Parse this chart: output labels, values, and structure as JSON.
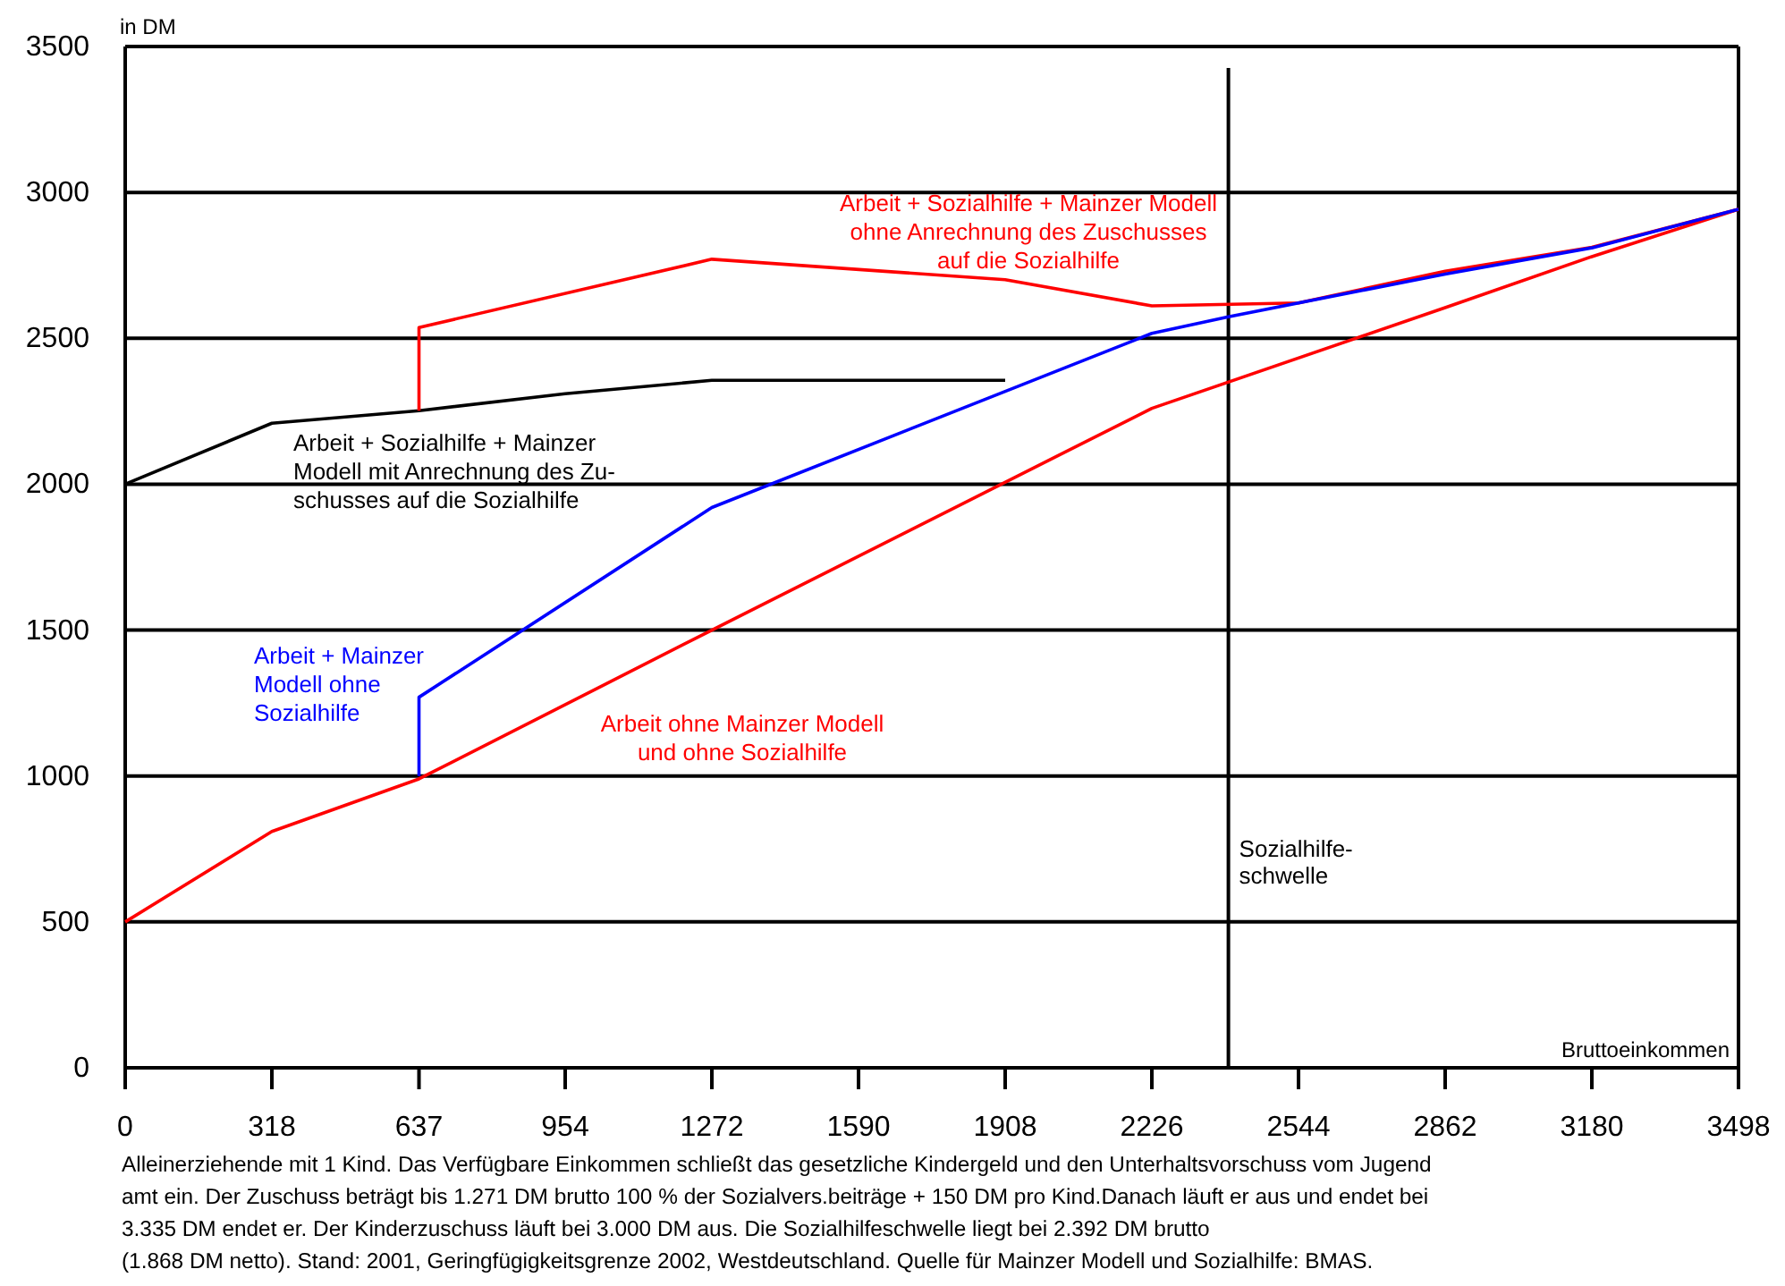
{
  "chart_data": {
    "type": "line",
    "xlabel": "Bruttoeinkommen",
    "ylabel": "in DM",
    "xlim": [
      0,
      3498
    ],
    "xticks": [
      0,
      318,
      637,
      954,
      1272,
      1590,
      1908,
      2226,
      2544,
      2862,
      3180,
      3498
    ],
    "ylim": [
      0,
      3500
    ],
    "yticks": [
      0,
      500,
      1000,
      1500,
      2000,
      2500,
      3000,
      3500
    ],
    "grid": "y",
    "line_style": "solid",
    "marker": "none",
    "series": [
      {
        "name": "Arbeit ohne Mainzer Modell\nund ohne Sozialhilfe",
        "color": "#ff0000",
        "x": [
          0,
          318,
          637,
          1272,
          2226,
          2862,
          3180,
          3498
        ],
        "values": [
          500,
          810,
          990,
          1500,
          2260,
          2605,
          2780,
          2942
        ]
      },
      {
        "name": "Arbeit + Mainzer\nModell ohne\nSozialhilfe",
        "color": "#0000ff",
        "x": [
          637,
          637,
          1272,
          2226,
          2392,
          2862,
          3180,
          3498
        ],
        "values": [
          1000,
          1270,
          1920,
          2517,
          2574,
          2720,
          2810,
          2942
        ]
      },
      {
        "name": "Arbeit + Sozialhilfe + Mainzer\nModell mit Anrechnung des Zu-\nschusses auf die Sozialhilfe",
        "color": "#000000",
        "x": [
          0,
          318,
          637,
          954,
          1272,
          1908
        ],
        "values": [
          2000,
          2209,
          2252,
          2310,
          2356,
          2356
        ]
      },
      {
        "name": "Arbeit + Sozialhilfe + Mainzer Modell\nohne Anrechnung des Zuschusses\nauf die Sozialhilfe",
        "color": "#ff0000",
        "x": [
          637,
          637,
          1272,
          1908,
          2226,
          2544,
          2862,
          3180,
          3498
        ],
        "values": [
          2252,
          2537,
          2771,
          2701,
          2611,
          2621,
          2730,
          2812,
          2942
        ]
      }
    ],
    "ref_lines": [
      {
        "axis": "x",
        "value": 2392,
        "label": "Sozialhilfe-\nschwelle",
        "color": "#000000"
      }
    ],
    "annotations": [
      "Alleinerziehende mit 1 Kind. Das Verfügbare Einkommen schließt das gesetzliche Kindergeld und den Unterhaltsvorschuss vom Jugend\namt ein. Der Zuschuss beträgt bis 1.271 DM brutto 100 % der Sozialvers.beiträge + 150 DM pro Kind.Danach läuft er aus und endet bei\n3.335 DM endet er. Der Kinderzuschuss läuft bei 3.000 DM aus. Die Sozialhilfeschwelle liegt bei 2.392 DM brutto\n(1.868 DM netto). Stand: 2001, Geringfügigkeitsgrenze 2002, Westdeutschland. Quelle für Mainzer Modell und Sozialhilfe: BMAS."
    ]
  }
}
